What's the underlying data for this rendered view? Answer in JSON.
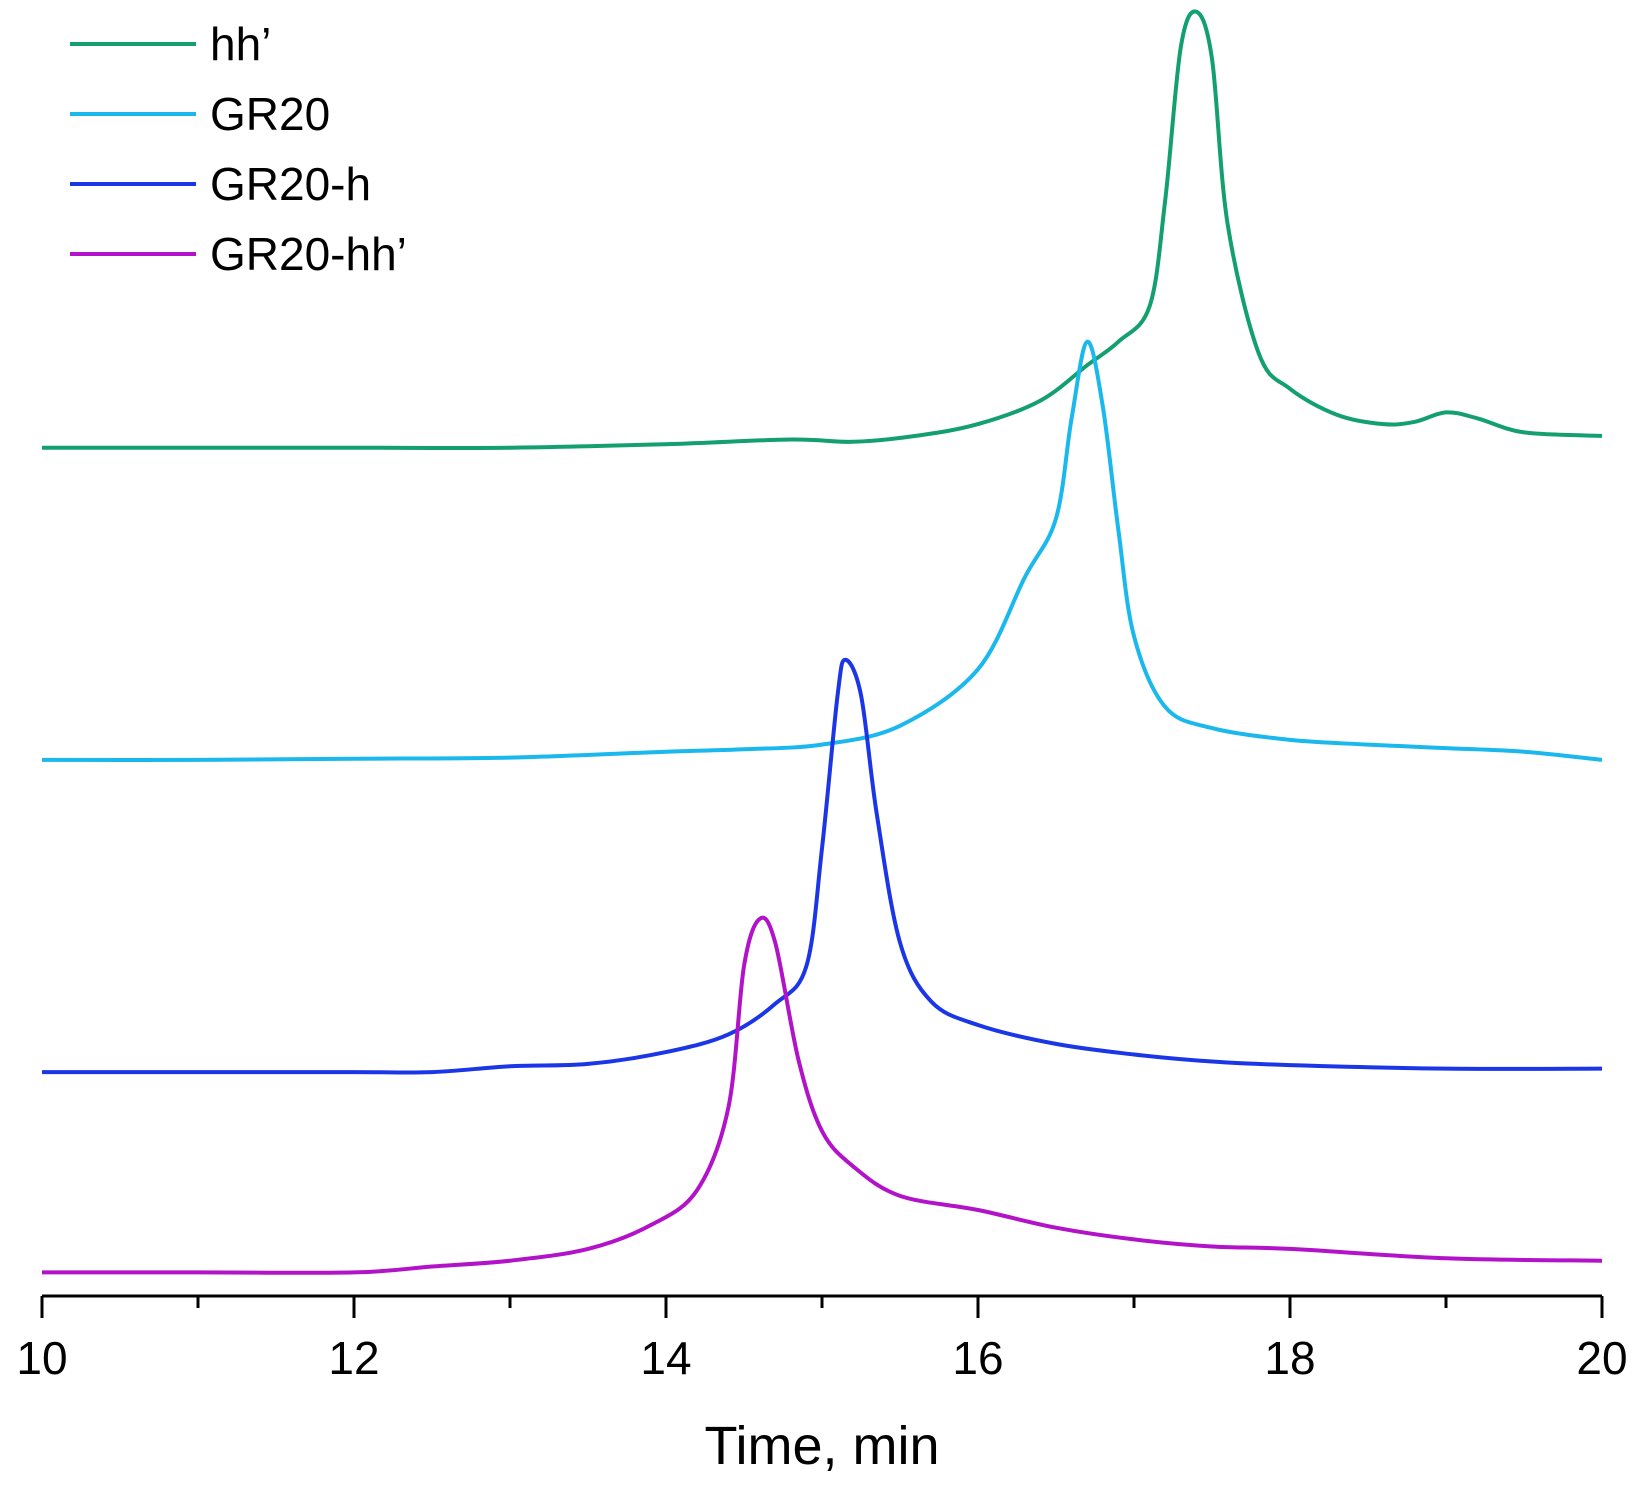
{
  "chart_data": {
    "type": "line",
    "title": "",
    "xlabel": "Time, min",
    "ylabel": "",
    "xlim": [
      10,
      20
    ],
    "ylim": [
      0,
      1.1
    ],
    "x_ticks": [
      {
        "value": 10,
        "label": "10"
      },
      {
        "value": 12,
        "label": "12"
      },
      {
        "value": 14,
        "label": "14"
      },
      {
        "value": 16,
        "label": "16"
      },
      {
        "value": 18,
        "label": "18"
      },
      {
        "value": 20,
        "label": "20"
      }
    ],
    "x_minor_ticks": [
      11,
      13,
      15,
      17,
      19
    ],
    "legend_position": "top-left",
    "notes": "Traces are vertically offset (stacked); y axis is not shown. y values are in relative intensity units on a shared scale.",
    "series": [
      {
        "name": "hh’",
        "color": "#13a06e",
        "points": [
          [
            10,
            0.72
          ],
          [
            11,
            0.72
          ],
          [
            12,
            0.72
          ],
          [
            13,
            0.72
          ],
          [
            14,
            0.723
          ],
          [
            14.8,
            0.727
          ],
          [
            15.2,
            0.725
          ],
          [
            15.6,
            0.73
          ],
          [
            16,
            0.74
          ],
          [
            16.4,
            0.76
          ],
          [
            16.7,
            0.79
          ],
          [
            16.9,
            0.81
          ],
          [
            17.1,
            0.84
          ],
          [
            17.2,
            0.93
          ],
          [
            17.3,
            1.06
          ],
          [
            17.4,
            1.09
          ],
          [
            17.5,
            1.05
          ],
          [
            17.6,
            0.91
          ],
          [
            17.8,
            0.8
          ],
          [
            18,
            0.77
          ],
          [
            18.3,
            0.748
          ],
          [
            18.6,
            0.74
          ],
          [
            18.8,
            0.742
          ],
          [
            19,
            0.75
          ],
          [
            19.2,
            0.745
          ],
          [
            19.5,
            0.733
          ],
          [
            20,
            0.73
          ]
        ]
      },
      {
        "name": "GR20",
        "color": "#1ab8ec",
        "points": [
          [
            10,
            0.455
          ],
          [
            11,
            0.455
          ],
          [
            12,
            0.456
          ],
          [
            13,
            0.457
          ],
          [
            14,
            0.462
          ],
          [
            14.5,
            0.464
          ],
          [
            15,
            0.468
          ],
          [
            15.5,
            0.484
          ],
          [
            16,
            0.532
          ],
          [
            16.3,
            0.61
          ],
          [
            16.5,
            0.66
          ],
          [
            16.6,
            0.745
          ],
          [
            16.7,
            0.81
          ],
          [
            16.8,
            0.755
          ],
          [
            16.9,
            0.65
          ],
          [
            17,
            0.56
          ],
          [
            17.2,
            0.5
          ],
          [
            17.5,
            0.482
          ],
          [
            18,
            0.472
          ],
          [
            18.5,
            0.468
          ],
          [
            19,
            0.465
          ],
          [
            19.5,
            0.462
          ],
          [
            20,
            0.455
          ]
        ]
      },
      {
        "name": "GR20-h",
        "color": "#1a36e6",
        "points": [
          [
            10,
            0.19
          ],
          [
            11,
            0.19
          ],
          [
            12,
            0.19
          ],
          [
            12.5,
            0.19
          ],
          [
            13,
            0.195
          ],
          [
            13.5,
            0.197
          ],
          [
            14,
            0.207
          ],
          [
            14.4,
            0.222
          ],
          [
            14.7,
            0.248
          ],
          [
            14.9,
            0.28
          ],
          [
            15,
            0.38
          ],
          [
            15.1,
            0.51
          ],
          [
            15.15,
            0.54
          ],
          [
            15.25,
            0.51
          ],
          [
            15.35,
            0.41
          ],
          [
            15.5,
            0.3
          ],
          [
            15.7,
            0.25
          ],
          [
            16,
            0.23
          ],
          [
            16.5,
            0.214
          ],
          [
            17,
            0.205
          ],
          [
            17.5,
            0.199
          ],
          [
            18,
            0.196
          ],
          [
            19,
            0.193
          ],
          [
            20,
            0.193
          ]
        ]
      },
      {
        "name": "GR20-hh’",
        "color": "#b212c8",
        "points": [
          [
            10,
            0.02
          ],
          [
            11,
            0.02
          ],
          [
            12,
            0.02
          ],
          [
            12.5,
            0.025
          ],
          [
            13,
            0.03
          ],
          [
            13.5,
            0.04
          ],
          [
            13.9,
            0.06
          ],
          [
            14.2,
            0.09
          ],
          [
            14.4,
            0.16
          ],
          [
            14.5,
            0.28
          ],
          [
            14.6,
            0.32
          ],
          [
            14.7,
            0.3
          ],
          [
            14.85,
            0.2
          ],
          [
            15,
            0.14
          ],
          [
            15.2,
            0.11
          ],
          [
            15.5,
            0.085
          ],
          [
            16,
            0.073
          ],
          [
            16.5,
            0.058
          ],
          [
            17,
            0.048
          ],
          [
            17.5,
            0.042
          ],
          [
            18,
            0.04
          ],
          [
            19,
            0.032
          ],
          [
            20,
            0.03
          ]
        ]
      }
    ]
  }
}
